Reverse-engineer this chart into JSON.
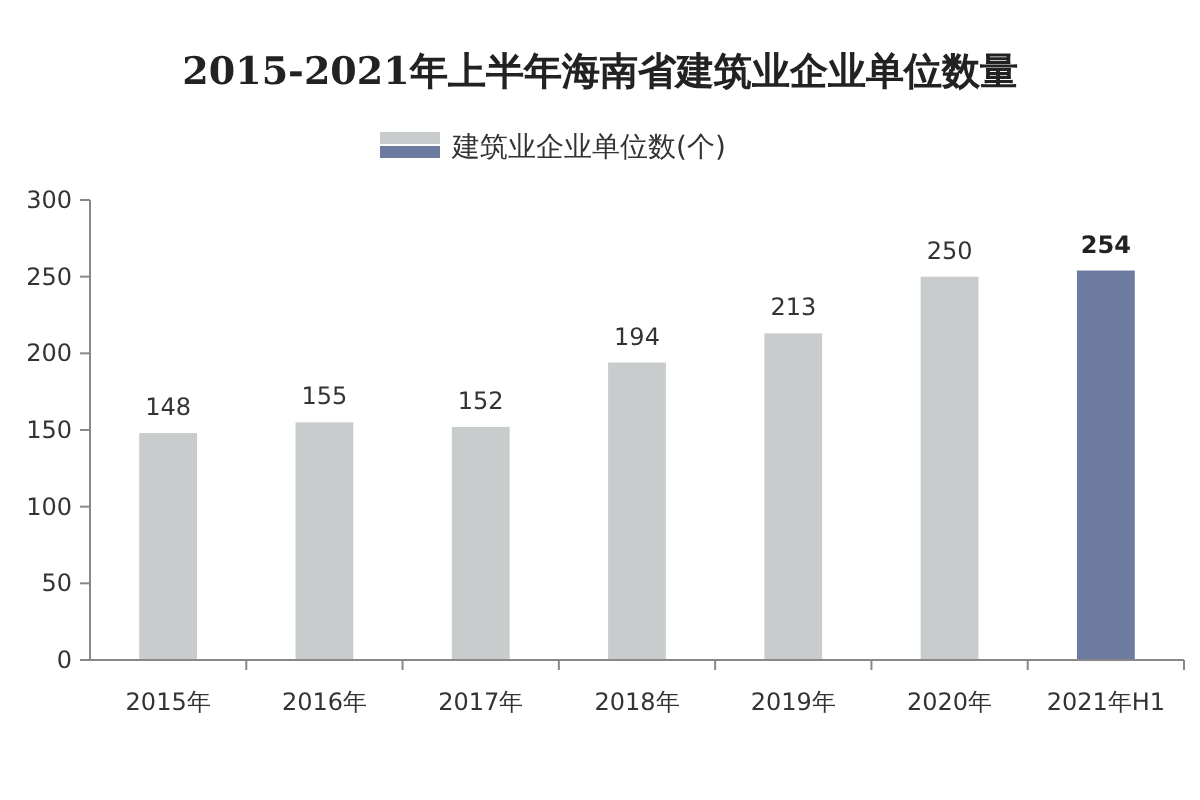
{
  "chart_data": {
    "type": "bar",
    "title": "2015-2021年上半年海南省建筑业企业单位数量",
    "categories": [
      "2015年",
      "2016年",
      "2017年",
      "2018年",
      "2019年",
      "2020年",
      "2021年H1"
    ],
    "series": [
      {
        "name": "建筑业企业单位数(个)",
        "colors": [
          "#c9cccd",
          "#c9cccd",
          "#c9cccd",
          "#c9cccd",
          "#c9cccd",
          "#c9cccd",
          "#6d7ba0"
        ],
        "values": [
          148,
          155,
          152,
          194,
          213,
          250,
          254
        ]
      }
    ],
    "ylim": [
      0,
      300
    ],
    "yticks": [
      0,
      50,
      100,
      150,
      200,
      250,
      300
    ],
    "data_labels": true,
    "legend": "top",
    "grid": false
  }
}
